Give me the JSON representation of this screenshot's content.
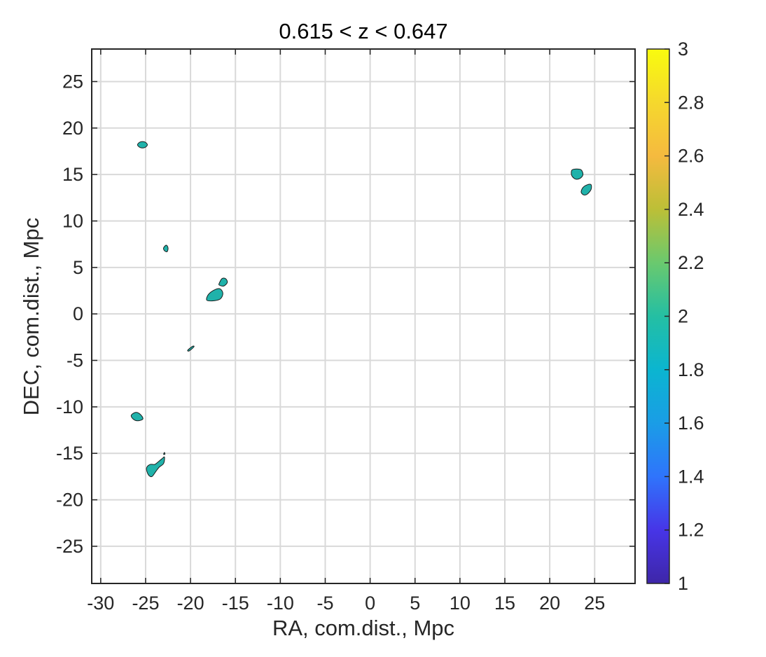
{
  "chart_data": {
    "type": "contour",
    "title": "0.615 < z < 0.647",
    "xlabel": "RA, com.dist., Mpc",
    "ylabel": "DEC, com.dist., Mpc",
    "xlim": [
      -31,
      29.5
    ],
    "ylim": [
      -29,
      28.5
    ],
    "xticks": [
      -30,
      -25,
      -20,
      -15,
      -10,
      -5,
      0,
      5,
      10,
      15,
      20,
      25
    ],
    "yticks": [
      -25,
      -20,
      -15,
      -10,
      -5,
      0,
      5,
      10,
      15,
      20,
      25
    ],
    "grid": true,
    "contour_level": 2,
    "contour_fill": "#20b2aa",
    "colorbar": {
      "min": 1,
      "max": 3,
      "ticks": [
        "1",
        "1.2",
        "1.4",
        "1.6",
        "1.8",
        "2",
        "2.2",
        "2.4",
        "2.6",
        "2.8",
        "3"
      ],
      "colormap": [
        "#3e26a8",
        "#4735e7",
        "#2f74fc",
        "#1a9de6",
        "#0bb5d0",
        "#24bfa3",
        "#6ac96e",
        "#bcbf37",
        "#f5ba3f",
        "#f5d82d",
        "#f9fb0e"
      ]
    },
    "regions": [
      {
        "name": "blob-1",
        "points": [
          [
            -25.6,
            18.5
          ],
          [
            -25.1,
            18.5
          ],
          [
            -24.8,
            18.2
          ],
          [
            -25.1,
            17.9
          ],
          [
            -25.6,
            17.9
          ],
          [
            -25.9,
            18.2
          ]
        ]
      },
      {
        "name": "blob-2",
        "points": [
          [
            -22.7,
            7.4
          ],
          [
            -22.5,
            7.1
          ],
          [
            -22.6,
            6.7
          ],
          [
            -22.9,
            6.8
          ],
          [
            -23.0,
            7.1
          ]
        ]
      },
      {
        "name": "blob-3",
        "points": [
          [
            -18.2,
            1.5
          ],
          [
            -18.0,
            2.1
          ],
          [
            -17.3,
            2.6
          ],
          [
            -16.7,
            2.7
          ],
          [
            -16.4,
            2.2
          ],
          [
            -16.7,
            1.6
          ],
          [
            -17.6,
            1.4
          ]
        ]
      },
      {
        "name": "blob-4",
        "points": [
          [
            -16.8,
            3.3
          ],
          [
            -16.5,
            3.8
          ],
          [
            -16.1,
            3.8
          ],
          [
            -15.9,
            3.4
          ],
          [
            -16.3,
            3.0
          ],
          [
            -16.8,
            3.1
          ]
        ]
      },
      {
        "name": "blob-5",
        "points": [
          [
            -20.3,
            -3.9
          ],
          [
            -19.8,
            -3.5
          ],
          [
            -19.6,
            -3.5
          ],
          [
            -19.9,
            -3.8
          ],
          [
            -20.2,
            -4.0
          ]
        ]
      },
      {
        "name": "blob-6",
        "points": [
          [
            -26.6,
            -10.9
          ],
          [
            -26.1,
            -10.6
          ],
          [
            -25.6,
            -10.8
          ],
          [
            -25.3,
            -11.3
          ],
          [
            -25.9,
            -11.5
          ],
          [
            -26.4,
            -11.3
          ]
        ]
      },
      {
        "name": "blob-7",
        "points": [
          [
            -24.9,
            -16.6
          ],
          [
            -24.5,
            -16.2
          ],
          [
            -24.0,
            -16.2
          ],
          [
            -23.7,
            -16.0
          ],
          [
            -23.2,
            -15.6
          ],
          [
            -22.9,
            -15.4
          ],
          [
            -23.0,
            -16.1
          ],
          [
            -23.5,
            -16.5
          ],
          [
            -23.9,
            -17.0
          ],
          [
            -24.3,
            -17.5
          ],
          [
            -24.7,
            -17.3
          ]
        ]
      },
      {
        "name": "blob-8",
        "points": [
          [
            -23.0,
            -15.1
          ],
          [
            -22.9,
            -14.9
          ],
          [
            -22.85,
            -15.1
          ]
        ]
      },
      {
        "name": "blob-9",
        "points": [
          [
            22.4,
            15.2
          ],
          [
            22.5,
            15.5
          ],
          [
            23.0,
            15.6
          ],
          [
            23.5,
            15.5
          ],
          [
            23.7,
            15.0
          ],
          [
            23.4,
            14.6
          ],
          [
            22.9,
            14.5
          ],
          [
            22.5,
            14.8
          ]
        ]
      },
      {
        "name": "blob-10",
        "points": [
          [
            23.5,
            13.1
          ],
          [
            23.7,
            13.6
          ],
          [
            24.2,
            13.9
          ],
          [
            24.6,
            13.9
          ],
          [
            24.6,
            13.4
          ],
          [
            24.2,
            12.9
          ],
          [
            23.8,
            12.8
          ]
        ]
      }
    ]
  }
}
